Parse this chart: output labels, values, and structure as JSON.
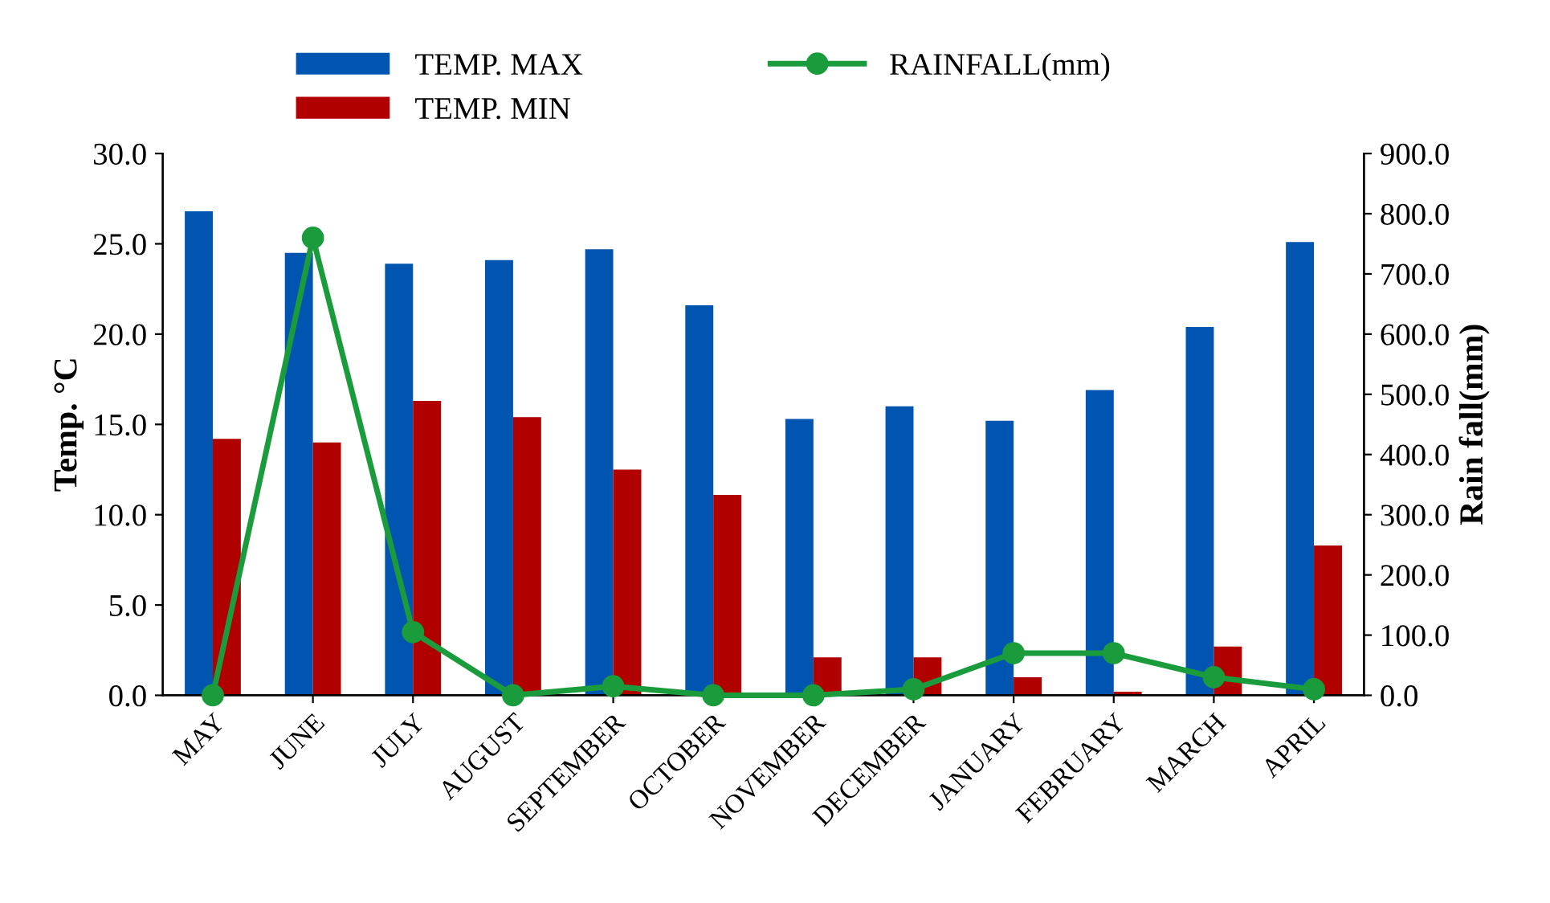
{
  "chart_data": {
    "type": "bar",
    "ylabel": "Temp. °C",
    "y2label": "Rain fall(mm)",
    "categories": [
      "MAY",
      "JUNE",
      "JULY",
      "AUGUST",
      "SEPTEMBER",
      "OCTOBER",
      "NOVEMBER",
      "DECEMBER",
      "JANUARY",
      "FEBRUARY",
      "MARCH",
      "APRIL"
    ],
    "series": [
      {
        "name": "TEMP. MAX",
        "color": "#0055b0",
        "values": [
          26.8,
          24.5,
          23.9,
          24.1,
          24.7,
          21.6,
          15.3,
          16.0,
          15.2,
          16.9,
          20.4,
          25.1
        ]
      },
      {
        "name": "TEMP. MIN",
        "color": "#b00000",
        "values": [
          14.2,
          14.0,
          16.3,
          15.4,
          12.5,
          11.1,
          2.1,
          2.1,
          1.0,
          0.2,
          2.7,
          8.3
        ]
      },
      {
        "name": "RAINFALL(mm)",
        "type": "line",
        "axis": "y2",
        "color": "#1a9c3c",
        "marker": "circle",
        "values": [
          0,
          760,
          105,
          0,
          15,
          0,
          0,
          10,
          70,
          70,
          30,
          10
        ]
      }
    ],
    "ylim": [
      0,
      30
    ],
    "yticks": [
      {
        "value": 0,
        "label": "0.0"
      },
      {
        "value": 5,
        "label": "5.0"
      },
      {
        "value": 10,
        "label": "10.0"
      },
      {
        "value": 15,
        "label": "15.0"
      },
      {
        "value": 20,
        "label": "20.0"
      },
      {
        "value": 25,
        "label": "25.0"
      },
      {
        "value": 30,
        "label": "30.0"
      }
    ],
    "y2lim": [
      0,
      900
    ],
    "y2ticks": [
      {
        "value": 0,
        "label": "0.0"
      },
      {
        "value": 100,
        "label": "100.0"
      },
      {
        "value": 200,
        "label": "200.0"
      },
      {
        "value": 300,
        "label": "300.0"
      },
      {
        "value": 400,
        "label": "400.0"
      },
      {
        "value": 500,
        "label": "500.0"
      },
      {
        "value": 600,
        "label": "600.0"
      },
      {
        "value": 700,
        "label": "700.0"
      },
      {
        "value": 800,
        "label": "800.0"
      },
      {
        "value": 900,
        "label": "900.0"
      }
    ],
    "grid": false,
    "legend": "top"
  }
}
